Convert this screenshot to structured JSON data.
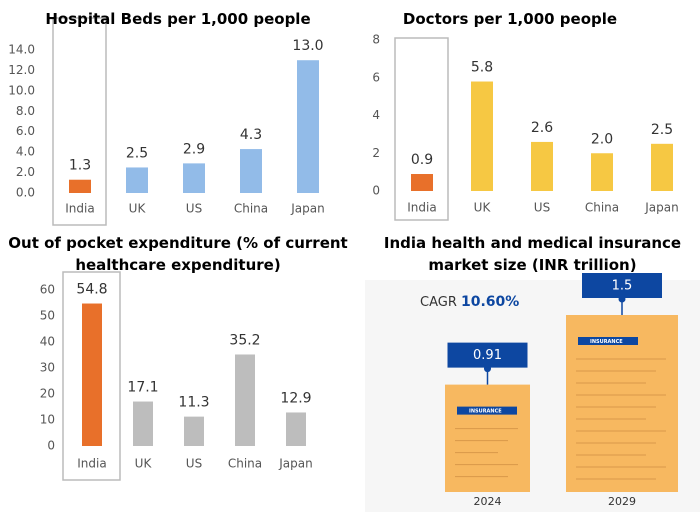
{
  "chart_data": [
    {
      "type": "bar",
      "title": "Hospital Beds per 1,000 people",
      "categories": [
        "India",
        "UK",
        "US",
        "China",
        "Japan"
      ],
      "values": [
        1.3,
        2.5,
        2.9,
        4.3,
        13.0
      ],
      "value_labels": [
        "1.3",
        "2.5",
        "2.9",
        "4.3",
        "13.0"
      ],
      "colors": [
        "#e8702a",
        "#92bbe8",
        "#92bbe8",
        "#92bbe8",
        "#92bbe8"
      ],
      "ylim": [
        0,
        14
      ],
      "yticks": [
        {
          "value": 0,
          "label": "0.0"
        },
        {
          "value": 2,
          "label": "2.0"
        },
        {
          "value": 4,
          "label": "4.0"
        },
        {
          "value": 6,
          "label": "6.0"
        },
        {
          "value": 8,
          "label": "8.0"
        },
        {
          "value": 10,
          "label": "10.0"
        },
        {
          "value": 12,
          "label": "12.0"
        },
        {
          "value": 14,
          "label": "14.0"
        }
      ],
      "grid": false
    },
    {
      "type": "bar",
      "title": "Doctors per 1,000 people",
      "categories": [
        "India",
        "UK",
        "US",
        "China",
        "Japan"
      ],
      "values": [
        0.9,
        5.8,
        2.6,
        2.0,
        2.5
      ],
      "value_labels": [
        "0.9",
        "5.8",
        "2.6",
        "2.0",
        "2.5"
      ],
      "colors": [
        "#e8702a",
        "#f6c843",
        "#f6c843",
        "#f6c843",
        "#f6c843"
      ],
      "ylim": [
        0,
        8
      ],
      "yticks": [
        0,
        2,
        4,
        6,
        8
      ],
      "grid": false
    },
    {
      "type": "bar",
      "title": "Out of pocket expenditure (% of current healthcare expenditure)",
      "categories": [
        "India",
        "UK",
        "US",
        "China",
        "Japan"
      ],
      "values": [
        54.8,
        17.1,
        11.3,
        35.2,
        12.9
      ],
      "colors": [
        "#e8702a",
        "#bdbdbd",
        "#bdbdbd",
        "#bdbdbd",
        "#bdbdbd"
      ],
      "ylim": [
        0,
        60
      ],
      "yticks": [
        0,
        10,
        20,
        30,
        40,
        50,
        60
      ],
      "grid": false
    },
    {
      "type": "callout-bar",
      "title": "India health and medical insurance market size (INR trillion)",
      "annotation": "CAGR",
      "annotation_value": "10.60%",
      "doc_label": "INSURANCE",
      "categories": [
        "2024",
        "2029"
      ],
      "values": [
        0.91,
        1.5
      ],
      "color": "#f7b860",
      "label_color": "#0d47a1"
    }
  ]
}
